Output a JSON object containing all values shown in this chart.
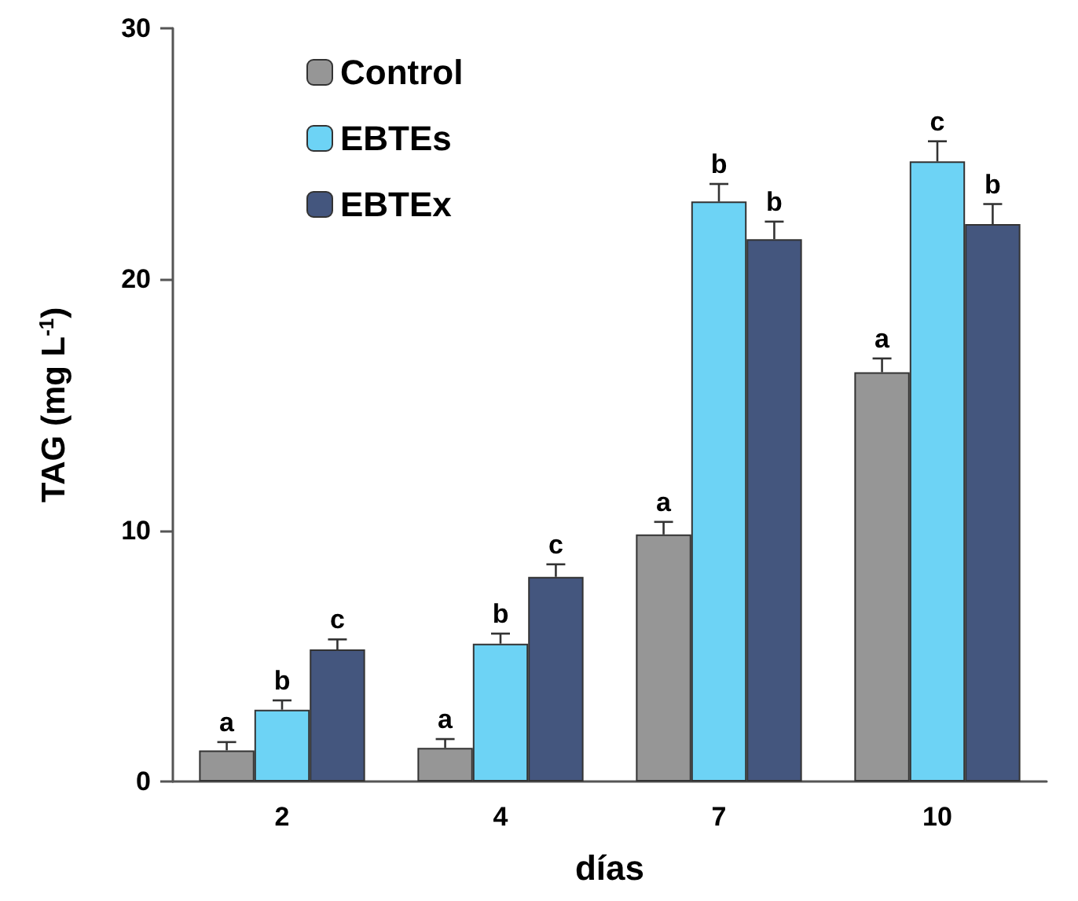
{
  "chart_data": {
    "type": "bar",
    "xlabel": "días",
    "ylabel": "TAG (mg L$^{-1}$)",
    "categories": [
      "2",
      "4",
      "7",
      "10"
    ],
    "series": [
      {
        "name": "Control",
        "color": "#969696",
        "values": [
          1.24,
          1.34,
          9.84,
          16.3
        ],
        "errors": [
          0.33,
          0.35,
          0.5,
          0.55
        ],
        "value_labels": [
          "a",
          "a",
          "a",
          "a"
        ]
      },
      {
        "name": "EBTEs",
        "color": "#6dd3f5",
        "values": [
          2.86,
          5.49,
          23.1,
          24.7
        ],
        "errors": [
          0.37,
          0.4,
          0.7,
          0.8
        ],
        "value_labels": [
          "b",
          "b",
          "b",
          "c"
        ]
      },
      {
        "name": "EBTEx",
        "color": "#44567e",
        "values": [
          5.26,
          8.15,
          21.6,
          22.2
        ],
        "errors": [
          0.4,
          0.5,
          0.7,
          0.8
        ],
        "value_labels": [
          "c",
          "c",
          "b",
          "b"
        ]
      }
    ],
    "ylim": [
      0,
      30
    ],
    "yticks": [
      0,
      10,
      20,
      30
    ],
    "grid": false,
    "legend": "top left"
  }
}
